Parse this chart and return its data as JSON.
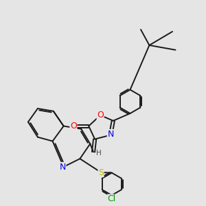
{
  "background_color": "#e5e5e5",
  "bond_color": "#1a1a1a",
  "bond_lw": 1.4,
  "atom_colors": {
    "N": "#0000ee",
    "O": "#ff0000",
    "S": "#bbbb00",
    "Cl": "#009900",
    "H": "#444444",
    "C": "#1a1a1a"
  },
  "figsize": [
    3.0,
    3.0
  ],
  "dpi": 100
}
